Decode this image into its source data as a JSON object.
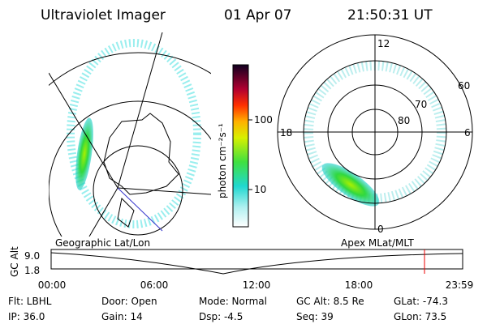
{
  "header": {
    "instrument": "Ultraviolet Imager",
    "date": "01 Apr 07",
    "time": "21:50:31 UT"
  },
  "colorbar": {
    "label": "photon cm⁻²s⁻¹",
    "ticks": [
      "100",
      "10"
    ]
  },
  "left_panel": {
    "caption": "Geographic Lat/Lon"
  },
  "right_panel": {
    "caption": "Apex MLat/MLT",
    "mlt_labels": [
      "12",
      "18",
      "6",
      "0"
    ],
    "lat_labels": [
      "60",
      "70",
      "80"
    ]
  },
  "altitude_plot": {
    "ylabel": "GC Alt",
    "yticks": [
      "9.0",
      "1.8"
    ],
    "xticks": [
      "00:00",
      "06:00",
      "12:00",
      "18:00",
      "23:59"
    ]
  },
  "footer": {
    "rows": [
      [
        "Flt: LBHL",
        "Door: Open",
        "Mode: Normal",
        "GC Alt: 8.5 Re",
        "GLat: -74.3"
      ],
      [
        "IP: 36.0",
        "Gain: 14",
        "Dsp: -4.5",
        "Seq: 39",
        "GLon: 73.5"
      ]
    ]
  }
}
